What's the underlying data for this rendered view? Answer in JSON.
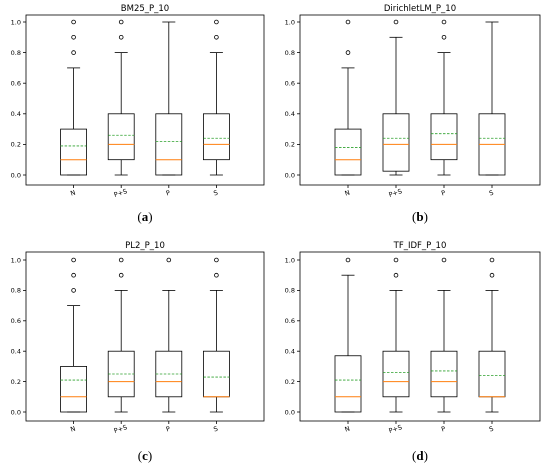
{
  "chart_data": [
    {
      "type": "box",
      "label": "a",
      "title": "BM25_P_10",
      "categories": [
        "N",
        "P+S",
        "P",
        "S"
      ],
      "ylim": [
        0,
        1.0
      ],
      "yticks": [
        "0.0",
        "0.2",
        "0.4",
        "0.6",
        "0.8",
        "1.0"
      ],
      "boxes": [
        {
          "whislo": 0.0,
          "q1": 0.0,
          "med": 0.1,
          "q3": 0.3,
          "whishi": 0.7,
          "mean": 0.19,
          "fliers": [
            0.8,
            0.9,
            1.0
          ]
        },
        {
          "whislo": 0.0,
          "q1": 0.1,
          "med": 0.2,
          "q3": 0.4,
          "whishi": 0.8,
          "mean": 0.26,
          "fliers": [
            0.9,
            1.0
          ]
        },
        {
          "whislo": 0.0,
          "q1": 0.0,
          "med": 0.1,
          "q3": 0.4,
          "whishi": 1.0,
          "mean": 0.22,
          "fliers": []
        },
        {
          "whislo": 0.0,
          "q1": 0.1,
          "med": 0.2,
          "q3": 0.4,
          "whishi": 0.8,
          "mean": 0.24,
          "fliers": [
            0.9,
            1.0
          ]
        }
      ]
    },
    {
      "type": "box",
      "label": "b",
      "title": "DirichletLM_P_10",
      "categories": [
        "N",
        "P+S",
        "P",
        "S"
      ],
      "ylim": [
        0,
        1.0
      ],
      "yticks": [
        "0.0",
        "0.2",
        "0.4",
        "0.6",
        "0.8",
        "1.0"
      ],
      "boxes": [
        {
          "whislo": 0.0,
          "q1": 0.0,
          "med": 0.1,
          "q3": 0.3,
          "whishi": 0.7,
          "mean": 0.18,
          "fliers": [
            0.8,
            1.0
          ]
        },
        {
          "whislo": 0.0,
          "q1": 0.025,
          "med": 0.2,
          "q3": 0.4,
          "whishi": 0.9,
          "mean": 0.24,
          "fliers": [
            1.0
          ]
        },
        {
          "whislo": 0.0,
          "q1": 0.1,
          "med": 0.2,
          "q3": 0.4,
          "whishi": 0.8,
          "mean": 0.27,
          "fliers": [
            0.9,
            1.0
          ]
        },
        {
          "whislo": 0.0,
          "q1": 0.0,
          "med": 0.2,
          "q3": 0.4,
          "whishi": 1.0,
          "mean": 0.24,
          "fliers": []
        }
      ]
    },
    {
      "type": "box",
      "label": "c",
      "title": "PL2_P_10",
      "categories": [
        "N",
        "P+S",
        "P",
        "S"
      ],
      "ylim": [
        0,
        1.0
      ],
      "yticks": [
        "0.0",
        "0.2",
        "0.4",
        "0.6",
        "0.8",
        "1.0"
      ],
      "boxes": [
        {
          "whislo": 0.0,
          "q1": 0.0,
          "med": 0.1,
          "q3": 0.3,
          "whishi": 0.7,
          "mean": 0.21,
          "fliers": [
            0.8,
            0.9,
            1.0
          ]
        },
        {
          "whislo": 0.0,
          "q1": 0.1,
          "med": 0.2,
          "q3": 0.4,
          "whishi": 0.8,
          "mean": 0.25,
          "fliers": [
            0.9,
            1.0
          ]
        },
        {
          "whislo": 0.0,
          "q1": 0.1,
          "med": 0.2,
          "q3": 0.4,
          "whishi": 0.8,
          "mean": 0.25,
          "fliers": [
            1.0
          ]
        },
        {
          "whislo": 0.0,
          "q1": 0.1,
          "med": 0.1,
          "q3": 0.4,
          "whishi": 0.8,
          "mean": 0.23,
          "fliers": [
            0.9,
            1.0
          ]
        }
      ]
    },
    {
      "type": "box",
      "label": "d",
      "title": "TF_IDF_P_10",
      "categories": [
        "N",
        "P+S",
        "P",
        "S"
      ],
      "ylim": [
        0,
        1.0
      ],
      "yticks": [
        "0.0",
        "0.2",
        "0.4",
        "0.6",
        "0.8",
        "1.0"
      ],
      "boxes": [
        {
          "whislo": 0.0,
          "q1": 0.0,
          "med": 0.1,
          "q3": 0.37,
          "whishi": 0.9,
          "mean": 0.21,
          "fliers": [
            1.0
          ]
        },
        {
          "whislo": 0.0,
          "q1": 0.1,
          "med": 0.2,
          "q3": 0.4,
          "whishi": 0.8,
          "mean": 0.26,
          "fliers": [
            0.9,
            1.0
          ]
        },
        {
          "whislo": 0.0,
          "q1": 0.1,
          "med": 0.2,
          "q3": 0.4,
          "whishi": 0.8,
          "mean": 0.27,
          "fliers": [
            1.0
          ]
        },
        {
          "whislo": 0.0,
          "q1": 0.1,
          "med": 0.1,
          "q3": 0.4,
          "whishi": 0.8,
          "mean": 0.24,
          "fliers": [
            0.9,
            1.0
          ]
        }
      ]
    }
  ],
  "colors": {
    "box": "#000000",
    "median": "#ff7f0e",
    "mean": "#2ca02c",
    "axis": "#000000"
  }
}
